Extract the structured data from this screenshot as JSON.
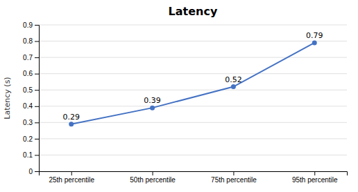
{
  "chart_data": {
    "type": "line",
    "title": "Latency",
    "ylabel": "Latency (s)",
    "categories": [
      "25th percentile",
      "50th percentile",
      "75th percentile",
      "95th percentile"
    ],
    "values": [
      0.29,
      0.39,
      0.52,
      0.79
    ],
    "annotations": [
      "0.29",
      "0.39",
      "0.52",
      "0.79"
    ],
    "data_labels": true,
    "color": "#4472C4",
    "marker": "circle",
    "ylim": [
      0,
      0.9
    ],
    "yticks": [
      0,
      0.1,
      0.2,
      0.3,
      0.4,
      0.5,
      0.6,
      0.7,
      0.8,
      0.9
    ],
    "grid": true
  }
}
